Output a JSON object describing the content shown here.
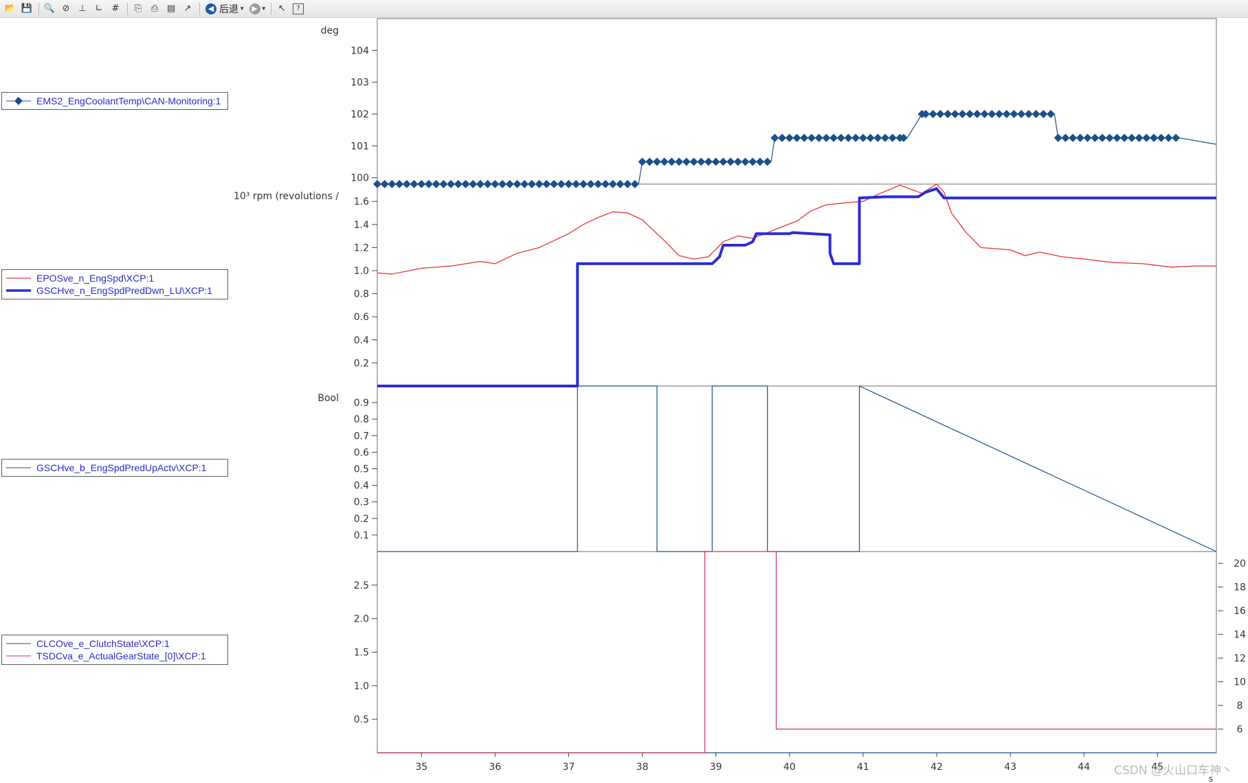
{
  "toolbar": {
    "back_label": "后退",
    "buttons": [
      "open-icon",
      "save-icon",
      "zoom-in-icon",
      "zoom-reset-icon",
      "axis-fit-icon",
      "axis-icon",
      "grid-icon",
      "copy-icon",
      "print-icon",
      "print-preview-icon",
      "export-icon"
    ]
  },
  "legends": [
    {
      "items": [
        {
          "label": "EMS2_EngCoolantTemp\\CAN-Monitoring:1",
          "color": "#1a4f8a",
          "style": "diamond"
        }
      ]
    },
    {
      "items": [
        {
          "label": "EPOSve_n_EngSpd\\XCP:1",
          "color": "#e84040",
          "style": "thin"
        },
        {
          "label": "GSCHve_n_EngSpdPredDwn_LU\\XCP:1",
          "color": "#2b2bd6",
          "style": "thick"
        }
      ]
    },
    {
      "items": [
        {
          "label": "GSCHve_b_EngSpdPredUpActv\\XCP:1",
          "color": "#1a4f8a",
          "style": "thin"
        }
      ]
    },
    {
      "items": [
        {
          "label": "CLCOve_e_ClutchState\\XCP:1",
          "color": "#1a4f8a",
          "style": "thin"
        },
        {
          "label": "TSDCva_e_ActualGearState_[0]\\XCP:1",
          "color": "#d0305a",
          "style": "thin"
        }
      ]
    }
  ],
  "x_axis": {
    "ticks": [
      "35",
      "36",
      "37",
      "38",
      "39",
      "40",
      "41",
      "42",
      "43",
      "44",
      "45"
    ],
    "unit": "s"
  },
  "panels": [
    {
      "unit": "deg",
      "yticks": [
        "100",
        "101",
        "102",
        "103",
        "104"
      ]
    },
    {
      "unit": "10³ rpm (revolutions /",
      "yticks": [
        "0.2",
        "0.4",
        "0.6",
        "0.8",
        "1.0",
        "1.2",
        "1.4",
        "1.6"
      ]
    },
    {
      "unit": "Bool",
      "yticks": [
        "0.1",
        "0.2",
        "0.3",
        "0.4",
        "0.5",
        "0.6",
        "0.7",
        "0.8",
        "0.9"
      ]
    },
    {
      "unit": "",
      "yticks": [
        "0.5",
        "1.0",
        "1.5",
        "2.0",
        "2.5"
      ],
      "yticks_right": [
        "6",
        "8",
        "10",
        "12",
        "14",
        "16",
        "18",
        "20"
      ]
    }
  ],
  "chart_data": [
    {
      "type": "line",
      "xlabel": "s",
      "ylabel": "deg",
      "ylim": [
        99.8,
        105
      ],
      "xlim": [
        34.4,
        45.8
      ],
      "series": [
        {
          "name": "EMS2_EngCoolantTemp\\CAN-Monitoring:1",
          "marker": "diamond",
          "x": [
            34.4,
            35.6,
            35.6,
            35.8,
            35.8,
            37.95,
            37.95,
            38.0,
            39.75,
            39.8,
            41.55,
            41.6,
            41.8,
            41.85,
            43.6,
            43.65,
            45.3,
            45.8
          ],
          "y": [
            99.8,
            99.8,
            99.8,
            99.8,
            99.8,
            99.8,
            99.8,
            100.5,
            100.5,
            101.25,
            101.25,
            101.25,
            102.0,
            102.0,
            102.0,
            101.25,
            101.25,
            101.05
          ]
        }
      ]
    },
    {
      "type": "line",
      "xlabel": "s",
      "ylabel": "10³ rpm (revolutions /",
      "ylim": [
        0,
        1.75
      ],
      "xlim": [
        34.4,
        45.8
      ],
      "series": [
        {
          "name": "EPOSve_n_EngSpd\\XCP:1",
          "x": [
            34.4,
            34.6,
            35.0,
            35.4,
            35.8,
            36.0,
            36.3,
            36.6,
            37.0,
            37.2,
            37.4,
            37.6,
            37.8,
            38.0,
            38.3,
            38.5,
            38.7,
            38.9,
            39.1,
            39.3,
            39.5,
            39.7,
            39.9,
            40.1,
            40.3,
            40.5,
            40.8,
            41.0,
            41.2,
            41.5,
            41.8,
            42.0,
            42.1,
            42.2,
            42.4,
            42.6,
            43.0,
            43.2,
            43.4,
            43.7,
            44.0,
            44.4,
            44.8,
            45.2,
            45.5,
            45.8
          ],
          "y": [
            0.98,
            0.97,
            1.02,
            1.04,
            1.08,
            1.06,
            1.15,
            1.2,
            1.32,
            1.4,
            1.46,
            1.51,
            1.5,
            1.44,
            1.26,
            1.13,
            1.1,
            1.12,
            1.25,
            1.3,
            1.28,
            1.33,
            1.38,
            1.43,
            1.52,
            1.57,
            1.59,
            1.6,
            1.66,
            1.74,
            1.67,
            1.75,
            1.68,
            1.5,
            1.33,
            1.2,
            1.18,
            1.13,
            1.16,
            1.12,
            1.1,
            1.07,
            1.06,
            1.03,
            1.04,
            1.04
          ]
        },
        {
          "name": "GSCHve_n_EngSpdPredDwn_LU\\XCP:1",
          "x": [
            34.4,
            37.12,
            37.12,
            38.95,
            39.05,
            39.1,
            39.4,
            39.5,
            39.55,
            40.0,
            40.05,
            40.55,
            40.55,
            40.6,
            40.95,
            40.95,
            41.3,
            41.75,
            41.85,
            42.0,
            42.1,
            45.8
          ],
          "y": [
            0.0,
            0.0,
            1.06,
            1.06,
            1.12,
            1.22,
            1.22,
            1.25,
            1.32,
            1.32,
            1.33,
            1.31,
            1.15,
            1.06,
            1.06,
            1.63,
            1.64,
            1.64,
            1.68,
            1.71,
            1.63,
            1.63
          ]
        }
      ]
    },
    {
      "type": "line",
      "xlabel": "s",
      "ylabel": "Bool",
      "ylim": [
        0,
        1
      ],
      "xlim": [
        34.4,
        45.8
      ],
      "series": [
        {
          "name": "GSCHve_b_EngSpdPredUpActv\\XCP:1",
          "x": [
            34.4,
            37.12,
            37.12,
            38.2,
            38.2,
            38.95,
            38.95,
            39.7,
            39.7,
            40.95,
            40.95,
            45.8
          ],
          "y": [
            0,
            0,
            1,
            1,
            0,
            0,
            1,
            1,
            0,
            0,
            1,
            0
          ]
        }
      ]
    },
    {
      "type": "line",
      "xlabel": "s",
      "ylim": [
        0,
        3
      ],
      "y2lim": [
        4,
        21
      ],
      "xlim": [
        34.4,
        45.8
      ],
      "series": [
        {
          "name": "CLCOve_e_ClutchState\\XCP:1",
          "axis": "left",
          "x": [
            34.4,
            45.8
          ],
          "y": [
            0,
            0
          ]
        },
        {
          "name": "TSDCva_e_ActualGearState_[0]\\XCP:1",
          "axis": "right",
          "x": [
            34.4,
            38.85,
            38.85,
            39.82,
            39.82,
            45.8
          ],
          "y": [
            4,
            4,
            21,
            21,
            6,
            6
          ]
        }
      ]
    }
  ],
  "watermark": "CSDN @火山口车神丶"
}
